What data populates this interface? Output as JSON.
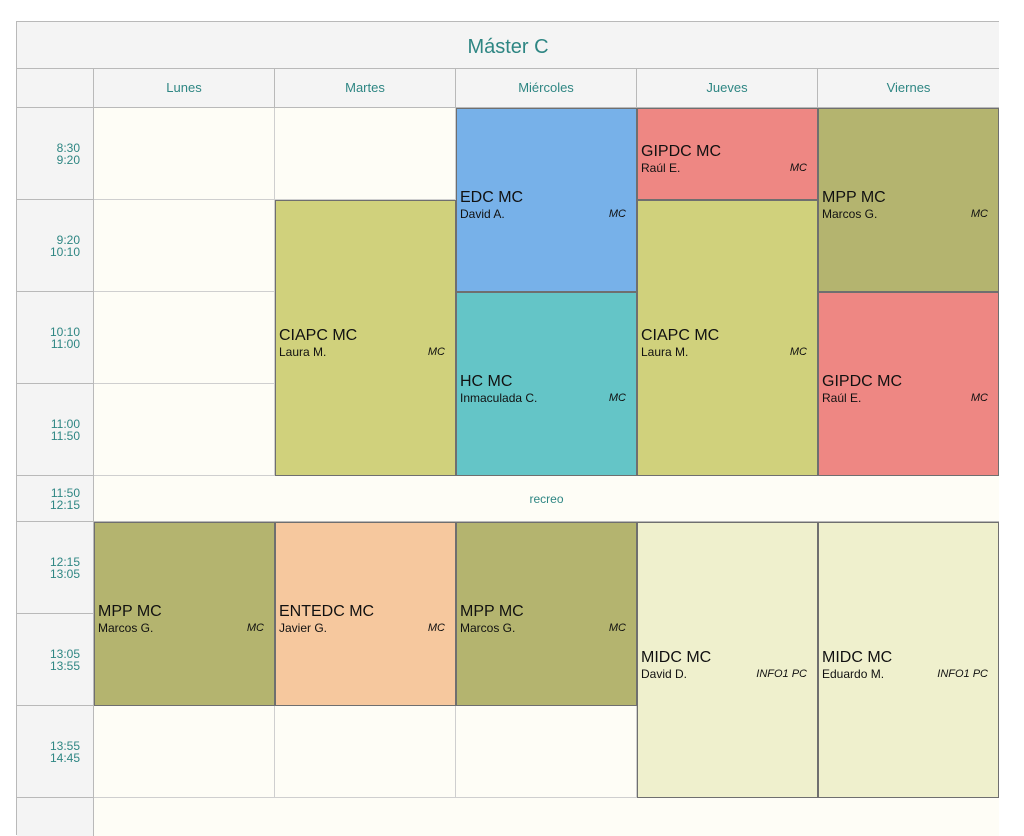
{
  "title": "Máster C",
  "days": [
    "Lunes",
    "Martes",
    "Miércoles",
    "Jueves",
    "Viernes"
  ],
  "times": [
    {
      "start": "8:30",
      "end": "9:20"
    },
    {
      "start": "9:20",
      "end": "10:10"
    },
    {
      "start": "10:10",
      "end": "11:00"
    },
    {
      "start": "11:00",
      "end": "11:50"
    },
    {
      "start": "11:50",
      "end": "12:15"
    },
    {
      "start": "12:15",
      "end": "13:05"
    },
    {
      "start": "13:05",
      "end": "13:55"
    },
    {
      "start": "13:55",
      "end": "14:45"
    }
  ],
  "break_label": "recreo",
  "sessions": [
    {
      "subject": "EDC MC",
      "teacher": "David A.",
      "room": "MC",
      "day": "Miércoles",
      "from": "8:30",
      "to": "10:10",
      "color": "#77b1e9"
    },
    {
      "subject": "HC MC",
      "teacher": "Inmaculada C.",
      "room": "MC",
      "day": "Miércoles",
      "from": "10:10",
      "to": "11:50",
      "color": "#64c5c7"
    },
    {
      "subject": "GIPDC MC",
      "teacher": "Raúl E.",
      "room": "MC",
      "day": "Jueves",
      "from": "8:30",
      "to": "9:20",
      "color": "#ee8783"
    },
    {
      "subject": "CIAPC MC",
      "teacher": "Laura M.",
      "room": "MC",
      "day": "Jueves",
      "from": "9:20",
      "to": "11:50",
      "color": "#d0d17c"
    },
    {
      "subject": "MPP MC",
      "teacher": "Marcos G.",
      "room": "MC",
      "day": "Viernes",
      "from": "8:30",
      "to": "10:10",
      "color": "#b4b46f"
    },
    {
      "subject": "GIPDC MC",
      "teacher": "Raúl E.",
      "room": "MC",
      "day": "Viernes",
      "from": "10:10",
      "to": "11:50",
      "color": "#ee8783"
    },
    {
      "subject": "CIAPC MC",
      "teacher": "Laura M.",
      "room": "MC",
      "day": "Martes",
      "from": "9:20",
      "to": "11:50",
      "color": "#d0d17c"
    },
    {
      "subject": "MPP MC",
      "teacher": "Marcos G.",
      "room": "MC",
      "day": "Lunes",
      "from": "12:15",
      "to": "13:55",
      "color": "#b4b46f"
    },
    {
      "subject": "ENTEDC MC",
      "teacher": "Javier G.",
      "room": "MC",
      "day": "Martes",
      "from": "12:15",
      "to": "13:55",
      "color": "#f6c89e"
    },
    {
      "subject": "MPP MC",
      "teacher": "Marcos G.",
      "room": "MC",
      "day": "Miércoles",
      "from": "12:15",
      "to": "13:55",
      "color": "#b4b46f"
    },
    {
      "subject": "MIDC MC",
      "teacher": "David D.",
      "room": "INFO1 PC",
      "day": "Jueves",
      "from": "12:15",
      "to": "14:45",
      "color": "#eff0cd"
    },
    {
      "subject": "MIDC MC",
      "teacher": "Eduardo M.",
      "room": "INFO1 PC",
      "day": "Viernes",
      "from": "12:15",
      "to": "14:45",
      "color": "#eff0cd"
    }
  ]
}
